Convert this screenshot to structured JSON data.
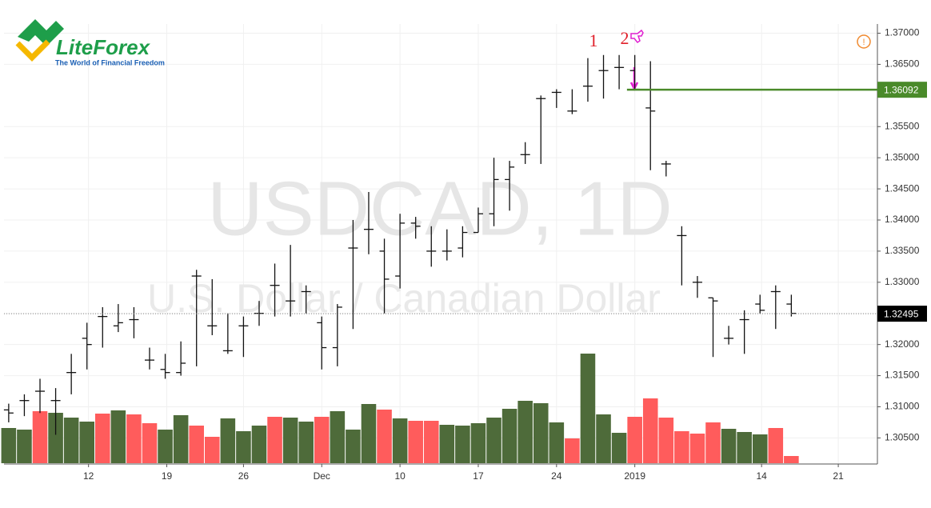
{
  "chart_data": {
    "type": "ohlc",
    "watermark_title": "USDCAD, 1D",
    "watermark_subtitle": "U.S. Dollar / Canadian Dollar",
    "logo": {
      "name": "LiteForex",
      "tagline": "The World of Financial Freedom"
    },
    "annotations": [
      "1",
      "2"
    ],
    "open": [
      1.3095,
      1.311,
      1.3125,
      1.311,
      1.3155,
      1.321,
      1.3245,
      1.323,
      1.324,
      1.3175,
      1.316,
      1.3155,
      1.331,
      1.323,
      1.319,
      1.323,
      1.325,
      1.3295,
      1.327,
      1.3285,
      1.3235,
      1.3195,
      1.3355,
      1.3385,
      1.335,
      1.331,
      1.3395,
      1.335,
      1.335,
      1.3355,
      1.338,
      1.341,
      1.3465,
      1.3505,
      1.3595,
      1.3605,
      1.3575,
      1.3615,
      1.364,
      1.3645,
      1.364,
      1.358,
      1.349,
      1.3375,
      1.33,
      1.3275,
      1.321,
      1.324,
      1.3265,
      1.3285,
      1.3265
    ],
    "high": [
      1.3105,
      1.312,
      1.3145,
      1.313,
      1.3185,
      1.3235,
      1.326,
      1.3265,
      1.326,
      1.3195,
      1.3185,
      1.3205,
      1.332,
      1.3305,
      1.325,
      1.3245,
      1.327,
      1.333,
      1.336,
      1.3295,
      1.3245,
      1.3265,
      1.34,
      1.3445,
      1.337,
      1.341,
      1.3405,
      1.339,
      1.3385,
      1.339,
      1.342,
      1.35,
      1.3495,
      1.3525,
      1.36,
      1.361,
      1.361,
      1.366,
      1.3665,
      1.3665,
      1.3665,
      1.3655,
      1.3495,
      1.339,
      1.331,
      1.3275,
      1.323,
      1.3255,
      1.328,
      1.3295,
      1.328
    ],
    "low": [
      1.3075,
      1.3085,
      1.309,
      1.3055,
      1.312,
      1.316,
      1.3195,
      1.322,
      1.321,
      1.316,
      1.3145,
      1.315,
      1.3165,
      1.3215,
      1.3185,
      1.318,
      1.323,
      1.3245,
      1.3245,
      1.325,
      1.316,
      1.3165,
      1.3225,
      1.3345,
      1.325,
      1.329,
      1.337,
      1.3325,
      1.3335,
      1.334,
      1.338,
      1.339,
      1.3415,
      1.349,
      1.349,
      1.358,
      1.357,
      1.359,
      1.3595,
      1.361,
      1.361,
      1.348,
      1.347,
      1.3295,
      1.3275,
      1.318,
      1.32,
      1.3185,
      1.325,
      1.3225,
      1.3245
    ],
    "close": [
      1.309,
      1.311,
      1.3125,
      1.311,
      1.3155,
      1.32,
      1.3245,
      1.3235,
      1.324,
      1.3175,
      1.3155,
      1.317,
      1.331,
      1.323,
      1.319,
      1.323,
      1.325,
      1.3295,
      1.327,
      1.3285,
      1.3195,
      1.326,
      1.3355,
      1.3385,
      1.3305,
      1.3395,
      1.339,
      1.335,
      1.335,
      1.338,
      1.341,
      1.3465,
      1.3485,
      1.3505,
      1.3595,
      1.3605,
      1.3575,
      1.3615,
      1.364,
      1.3645,
      1.361,
      1.3575,
      1.349,
      1.3375,
      1.33,
      1.327,
      1.321,
      1.324,
      1.3255,
      1.3285,
      1.325
    ],
    "volume": [
      44,
      42,
      65,
      63,
      57,
      52,
      62,
      66,
      61,
      50,
      42,
      60,
      47,
      33,
      56,
      40,
      47,
      58,
      57,
      52,
      58,
      65,
      42,
      74,
      67,
      56,
      53,
      53,
      48,
      47,
      50,
      57,
      68,
      78,
      75,
      51,
      31,
      137,
      61,
      38,
      58,
      81,
      57,
      40,
      37,
      51,
      43,
      39,
      36,
      44,
      9
    ],
    "volume_colors": [
      "#4e6b3a",
      "#4e6b3a",
      "#ff5c5c",
      "#4e6b3a",
      "#4e6b3a",
      "#4e6b3a",
      "#ff5c5c",
      "#4e6b3a",
      "#ff5c5c",
      "#ff5c5c",
      "#4e6b3a",
      "#4e6b3a",
      "#ff5c5c",
      "#ff5c5c",
      "#4e6b3a",
      "#4e6b3a",
      "#4e6b3a",
      "#ff5c5c",
      "#4e6b3a",
      "#4e6b3a",
      "#ff5c5c",
      "#4e6b3a",
      "#4e6b3a",
      "#4e6b3a",
      "#ff5c5c",
      "#4e6b3a",
      "#ff5c5c",
      "#ff5c5c",
      "#4e6b3a",
      "#4e6b3a",
      "#4e6b3a",
      "#4e6b3a",
      "#4e6b3a",
      "#4e6b3a",
      "#4e6b3a",
      "#4e6b3a",
      "#ff5c5c",
      "#4e6b3a",
      "#4e6b3a",
      "#4e6b3a",
      "#ff5c5c",
      "#ff5c5c",
      "#ff5c5c",
      "#ff5c5c",
      "#ff5c5c",
      "#ff5c5c",
      "#4e6b3a",
      "#4e6b3a",
      "#4e6b3a",
      "#ff5c5c",
      "#ff5c5c"
    ],
    "bar_color": "#111111",
    "xlim": [
      -0.3,
      55.5
    ],
    "xticks": [
      {
        "value": 5.1,
        "label": "12"
      },
      {
        "value": 10.1,
        "label": "19"
      },
      {
        "value": 15,
        "label": "26"
      },
      {
        "value": 20,
        "label": "Dec"
      },
      {
        "value": 25,
        "label": "10"
      },
      {
        "value": 30,
        "label": "17"
      },
      {
        "value": 35,
        "label": "24"
      },
      {
        "value": 40,
        "label": "2019"
      },
      {
        "value": 48.1,
        "label": "14"
      },
      {
        "value": 53,
        "label": "21"
      }
    ],
    "ylim": [
      1.30081,
      1.37148
    ],
    "yticks": [
      {
        "value": 1.37,
        "label": "1.37000"
      },
      {
        "value": 1.365,
        "label": "1.36500"
      },
      {
        "value": 1.355,
        "label": "1.35500"
      },
      {
        "value": 1.35,
        "label": "1.35000"
      },
      {
        "value": 1.345,
        "label": "1.34500"
      },
      {
        "value": 1.34,
        "label": "1.34000"
      },
      {
        "value": 1.335,
        "label": "1.33500"
      },
      {
        "value": 1.33,
        "label": "1.33000"
      },
      {
        "value": 1.325,
        "label": "1.32500"
      },
      {
        "value": 1.32,
        "label": "1.32000"
      },
      {
        "value": 1.315,
        "label": "1.31500"
      },
      {
        "value": 1.31,
        "label": "1.31000"
      },
      {
        "value": 1.305,
        "label": "1.30500"
      }
    ],
    "volume_ylim": [
      0,
      200
    ],
    "grid": true,
    "hline": {
      "value": 1.36092,
      "label": "1.36092",
      "color": "#4a8a2a"
    },
    "last_price": {
      "value": 1.32495,
      "label": "1.32495"
    }
  }
}
